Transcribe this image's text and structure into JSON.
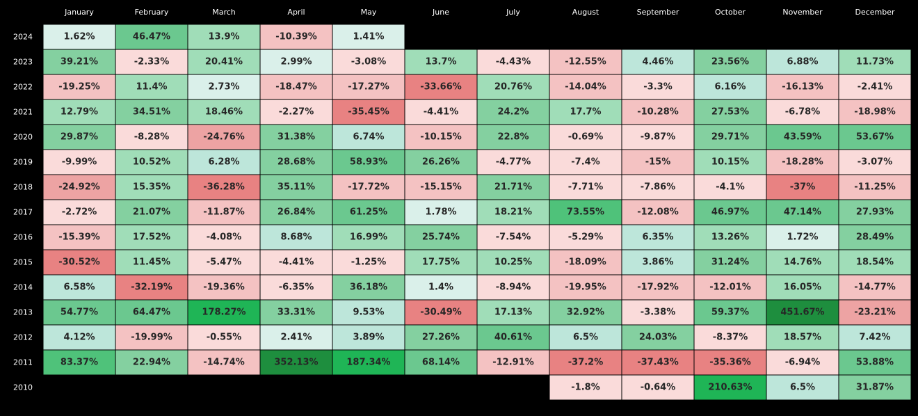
{
  "chart_data": {
    "type": "heatmap",
    "title": "",
    "xlabel": "",
    "ylabel": "",
    "months": [
      "January",
      "February",
      "March",
      "April",
      "May",
      "June",
      "July",
      "August",
      "September",
      "October",
      "November",
      "December"
    ],
    "years": [
      "2024",
      "2023",
      "2022",
      "2021",
      "2020",
      "2019",
      "2018",
      "2017",
      "2016",
      "2015",
      "2014",
      "2013",
      "2012",
      "2011",
      "2010"
    ],
    "values": [
      [
        1.62,
        46.47,
        13.9,
        -10.39,
        1.41,
        null,
        null,
        null,
        null,
        null,
        null,
        null
      ],
      [
        39.21,
        -2.33,
        20.41,
        2.99,
        -3.08,
        13.7,
        -4.43,
        -12.55,
        4.46,
        23.56,
        6.88,
        11.73
      ],
      [
        -19.25,
        11.4,
        2.73,
        -18.47,
        -17.27,
        -33.66,
        20.76,
        -14.04,
        -3.3,
        6.16,
        -16.13,
        -2.41
      ],
      [
        12.79,
        34.51,
        18.46,
        -2.27,
        -35.45,
        -4.41,
        24.2,
        17.7,
        -10.28,
        27.53,
        -6.78,
        -18.98
      ],
      [
        29.87,
        -8.28,
        -24.76,
        31.38,
        6.74,
        -10.15,
        22.8,
        -0.69,
        -9.87,
        29.71,
        43.59,
        53.67
      ],
      [
        -9.99,
        10.52,
        6.28,
        28.68,
        58.93,
        26.26,
        -4.77,
        -7.4,
        -15,
        10.15,
        -18.28,
        -3.07
      ],
      [
        -24.92,
        15.35,
        -36.28,
        35.11,
        -17.72,
        -15.15,
        21.71,
        -7.71,
        -7.86,
        -4.1,
        -37,
        -11.25
      ],
      [
        -2.72,
        21.07,
        -11.87,
        26.84,
        61.25,
        1.78,
        18.21,
        73.55,
        -12.08,
        46.97,
        47.14,
        27.93
      ],
      [
        -15.39,
        17.52,
        -4.08,
        8.68,
        16.99,
        25.74,
        -7.54,
        -5.29,
        6.35,
        13.26,
        1.72,
        28.49
      ],
      [
        -30.52,
        11.45,
        -5.47,
        -4.41,
        -1.25,
        17.75,
        10.25,
        -18.09,
        3.86,
        31.24,
        14.76,
        18.54
      ],
      [
        6.58,
        -32.19,
        -19.36,
        -6.35,
        36.18,
        1.4,
        -8.94,
        -19.95,
        -17.92,
        -12.01,
        16.05,
        -14.77
      ],
      [
        54.77,
        64.47,
        178.27,
        33.31,
        9.53,
        -30.49,
        17.13,
        32.92,
        -3.38,
        59.37,
        451.67,
        -23.21
      ],
      [
        4.12,
        -19.99,
        -0.55,
        2.41,
        3.89,
        27.26,
        40.61,
        6.5,
        24.03,
        -8.37,
        18.57,
        7.42
      ],
      [
        83.37,
        22.94,
        -14.74,
        352.13,
        187.34,
        68.14,
        -12.91,
        -37.2,
        -37.43,
        -35.36,
        -6.94,
        53.88
      ],
      [
        null,
        null,
        null,
        null,
        null,
        null,
        null,
        -1.8,
        -0.64,
        210.63,
        6.5,
        31.87
      ]
    ],
    "value_suffix": "%",
    "colors": {
      "background": "#000000",
      "text_labels": "#ffffff",
      "cell_text": "#262626",
      "cell_border": "#000000",
      "positive_scale": [
        "#daf0ea",
        "#bde6da",
        "#a0ddb8",
        "#84d0a0",
        "#6bc88f",
        "#4fc27a",
        "#1fb556",
        "#1e8e3e"
      ],
      "negative_scale": [
        "#fadbda",
        "#f4c2c2",
        "#eda3a3",
        "#e88282"
      ]
    }
  }
}
